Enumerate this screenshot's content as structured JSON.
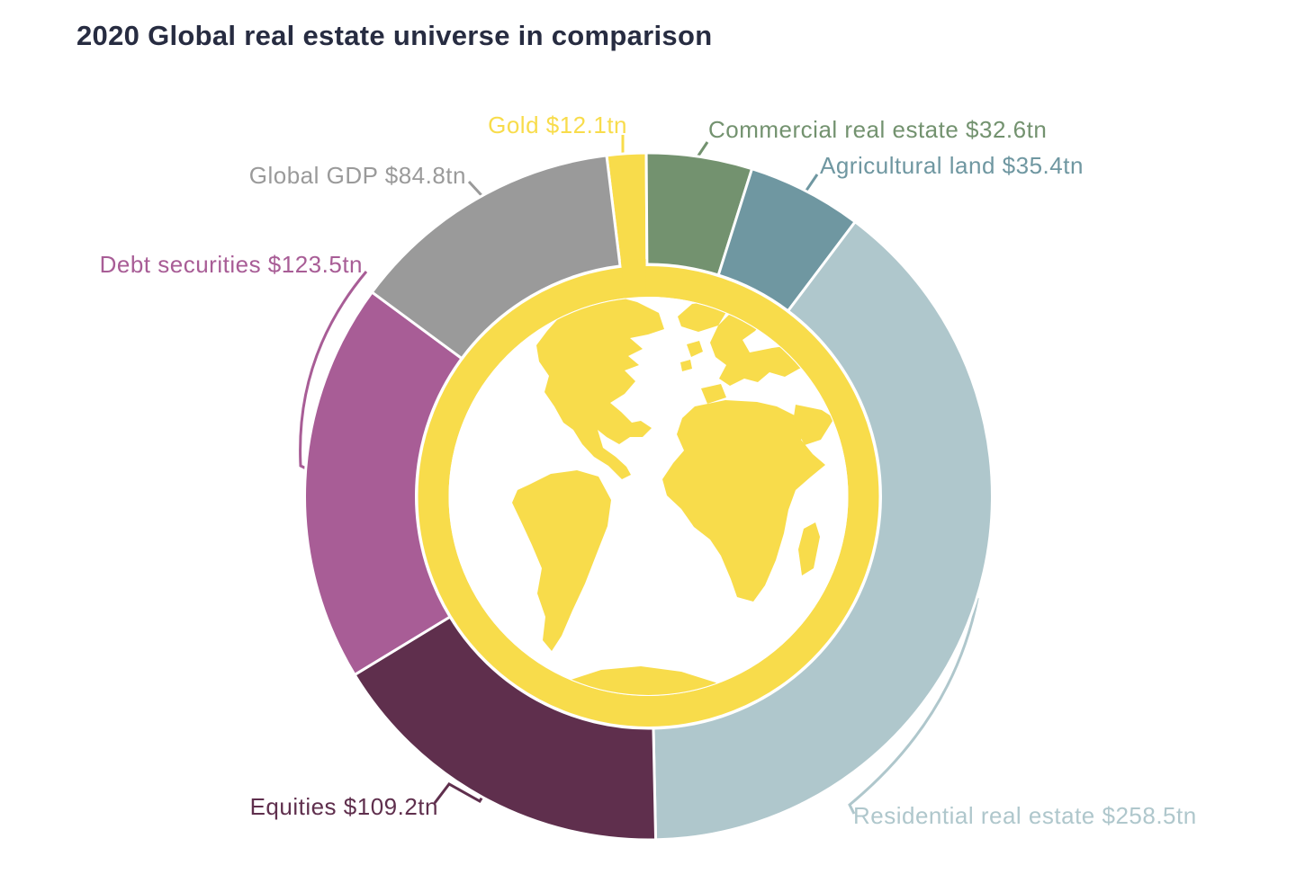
{
  "title": "2020 Global real estate universe in comparison",
  "colors": {
    "title_text": "#272C41",
    "background": "#FFFFFF",
    "separator": "#FFFFFF"
  },
  "chart_data": {
    "type": "pie",
    "variant": "donut",
    "title": "2020 Global real estate universe in comparison",
    "value_suffix": "tn",
    "rotation": "clockwise",
    "start_angle_deg": -7,
    "legend_position": "labels-around-chart",
    "center_icon": "globe-world-map",
    "segments": [
      {
        "name": "gold",
        "label": "Gold $12.1tn",
        "value": 12.1,
        "color": "#F8DC4B"
      },
      {
        "name": "commercial-real-estate",
        "label": "Commercial real estate $32.6tn",
        "value": 32.6,
        "color": "#73926F"
      },
      {
        "name": "agricultural-land",
        "label": "Agricultural land $35.4tn",
        "value": 35.4,
        "color": "#6F97A1"
      },
      {
        "name": "residential-real-estate",
        "label": "Residential real estate $258.5tn",
        "value": 258.5,
        "color": "#AFC7CC"
      },
      {
        "name": "equities",
        "label": "Equities $109.2tn",
        "value": 109.2,
        "color": "#5F2F4D"
      },
      {
        "name": "debt-securities",
        "label": "Debt securities $123.5tn",
        "value": 123.5,
        "color": "#A85D96"
      },
      {
        "name": "global-gdp",
        "label": "Global GDP $84.8tn",
        "value": 84.8,
        "color": "#9A9A9A"
      }
    ]
  }
}
